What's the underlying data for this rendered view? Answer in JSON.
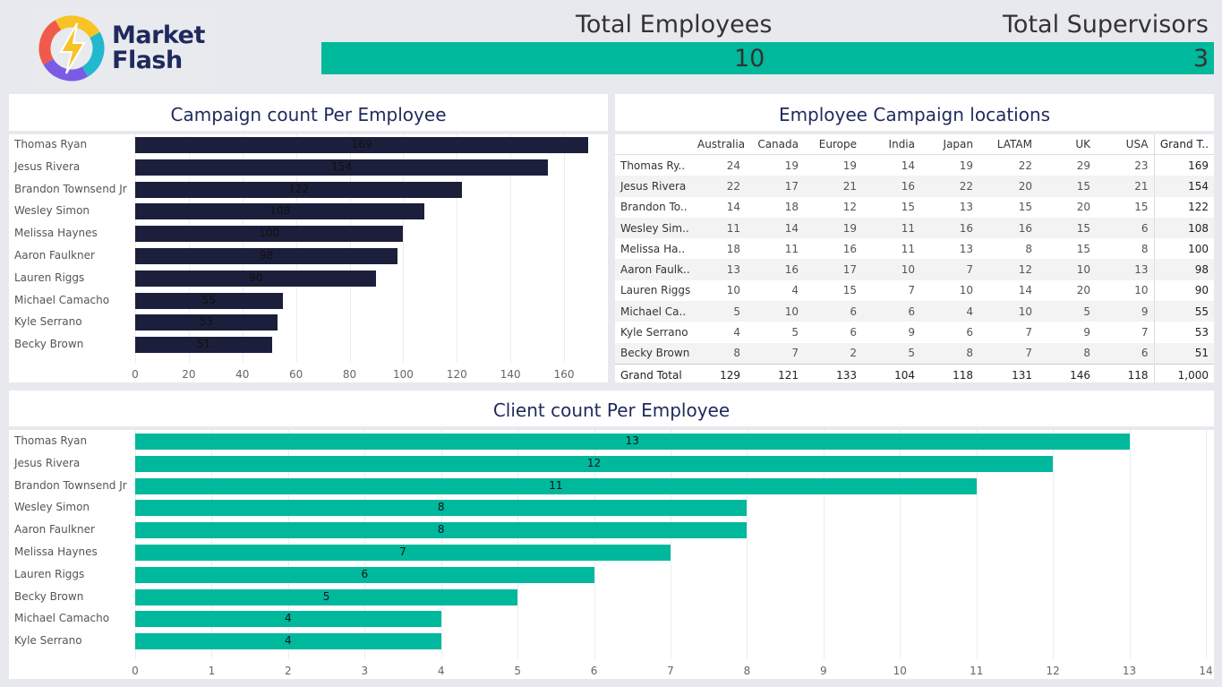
{
  "logo": {
    "line1": "Market",
    "line2": "Flash"
  },
  "kpis": {
    "employees_label": "Total Employees",
    "employees_value": "10",
    "supervisors_label": "Total Supervisors",
    "supervisors_value": "3",
    "bar_color": "#00b89c"
  },
  "campaign_chart": {
    "title": "Campaign count Per Employee",
    "bar_color": "#1c1f3b",
    "xlim": [
      0,
      175
    ],
    "ticks": [
      "0",
      "20",
      "40",
      "60",
      "80",
      "100",
      "120",
      "140",
      "160"
    ],
    "names": [
      "Thomas Ryan",
      "Jesus Rivera",
      "Brandon Townsend Jr",
      "Wesley Simon",
      "Melissa Haynes",
      "Aaron Faulkner",
      "Lauren Riggs",
      "Michael Camacho",
      "Kyle Serrano",
      "Becky Brown"
    ],
    "values": [
      169,
      154,
      122,
      108,
      100,
      98,
      90,
      55,
      53,
      51
    ]
  },
  "locations_table": {
    "title": "Employee Campaign locations",
    "columns": [
      "Australia",
      "Canada",
      "Europe",
      "India",
      "Japan",
      "LATAM",
      "UK",
      "USA",
      "Grand T.."
    ],
    "rows": [
      {
        "name": "Thomas Ry..",
        "vals": [
          "24",
          "19",
          "19",
          "14",
          "19",
          "22",
          "29",
          "23",
          "169"
        ]
      },
      {
        "name": "Jesus Rivera",
        "vals": [
          "22",
          "17",
          "21",
          "16",
          "22",
          "20",
          "15",
          "21",
          "154"
        ]
      },
      {
        "name": "Brandon To..",
        "vals": [
          "14",
          "18",
          "12",
          "15",
          "13",
          "15",
          "20",
          "15",
          "122"
        ]
      },
      {
        "name": "Wesley Sim..",
        "vals": [
          "11",
          "14",
          "19",
          "11",
          "16",
          "16",
          "15",
          "6",
          "108"
        ]
      },
      {
        "name": "Melissa Ha..",
        "vals": [
          "18",
          "11",
          "16",
          "11",
          "13",
          "8",
          "15",
          "8",
          "100"
        ]
      },
      {
        "name": "Aaron Faulk..",
        "vals": [
          "13",
          "16",
          "17",
          "10",
          "7",
          "12",
          "10",
          "13",
          "98"
        ]
      },
      {
        "name": "Lauren Riggs",
        "vals": [
          "10",
          "4",
          "15",
          "7",
          "10",
          "14",
          "20",
          "10",
          "90"
        ]
      },
      {
        "name": "Michael Ca..",
        "vals": [
          "5",
          "10",
          "6",
          "6",
          "4",
          "10",
          "5",
          "9",
          "55"
        ]
      },
      {
        "name": "Kyle Serrano",
        "vals": [
          "4",
          "5",
          "6",
          "9",
          "6",
          "7",
          "9",
          "7",
          "53"
        ]
      },
      {
        "name": "Becky Brown",
        "vals": [
          "8",
          "7",
          "2",
          "5",
          "8",
          "7",
          "8",
          "6",
          "51"
        ]
      }
    ],
    "total": {
      "name": "Grand Total",
      "vals": [
        "129",
        "121",
        "133",
        "104",
        "118",
        "131",
        "146",
        "118",
        "1,000"
      ]
    }
  },
  "client_chart": {
    "title": "Client count Per Employee",
    "bar_color": "#00b89c",
    "xlim": [
      0,
      14
    ],
    "ticks": [
      "0",
      "1",
      "2",
      "3",
      "4",
      "5",
      "6",
      "7",
      "8",
      "9",
      "10",
      "11",
      "12",
      "13",
      "14"
    ],
    "names": [
      "Thomas Ryan",
      "Jesus Rivera",
      "Brandon Townsend Jr",
      "Wesley Simon",
      "Aaron Faulkner",
      "Melissa Haynes",
      "Lauren Riggs",
      "Becky Brown",
      "Michael Camacho",
      "Kyle Serrano"
    ],
    "values": [
      13,
      12,
      11,
      8,
      8,
      7,
      6,
      5,
      4,
      4
    ]
  },
  "chart_data": [
    {
      "type": "bar",
      "title": "Campaign count Per Employee",
      "categories": [
        "Thomas Ryan",
        "Jesus Rivera",
        "Brandon Townsend Jr",
        "Wesley Simon",
        "Melissa Haynes",
        "Aaron Faulkner",
        "Lauren Riggs",
        "Michael Camacho",
        "Kyle Serrano",
        "Becky Brown"
      ],
      "values": [
        169,
        154,
        122,
        108,
        100,
        98,
        90,
        55,
        53,
        51
      ],
      "xlim": [
        0,
        175
      ]
    },
    {
      "type": "table",
      "title": "Employee Campaign locations",
      "columns": [
        "Australia",
        "Canada",
        "Europe",
        "India",
        "Japan",
        "LATAM",
        "UK",
        "USA",
        "Grand T.."
      ]
    },
    {
      "type": "bar",
      "title": "Client count Per Employee",
      "categories": [
        "Thomas Ryan",
        "Jesus Rivera",
        "Brandon Townsend Jr",
        "Wesley Simon",
        "Aaron Faulkner",
        "Melissa Haynes",
        "Lauren Riggs",
        "Becky Brown",
        "Michael Camacho",
        "Kyle Serrano"
      ],
      "values": [
        13,
        12,
        11,
        8,
        8,
        7,
        6,
        5,
        4,
        4
      ],
      "xlim": [
        0,
        14
      ]
    }
  ]
}
